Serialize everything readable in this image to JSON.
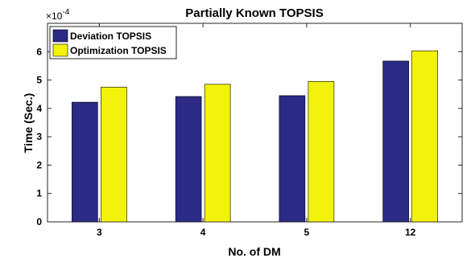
{
  "chart_data": {
    "type": "bar",
    "title": "Partially Known TOPSIS",
    "xlabel": "No. of DM",
    "ylabel": "Time (Sec.)",
    "y_multiplier_label": "×10",
    "y_multiplier_exponent": "-4",
    "categories": [
      "3",
      "4",
      "5",
      "12"
    ],
    "ylim": [
      0,
      7
    ],
    "yticks": [
      "0",
      "1",
      "2",
      "3",
      "4",
      "5",
      "6"
    ],
    "series": [
      {
        "name": "Deviation TOPSIS",
        "color": "#2b2a84",
        "values": [
          4.22,
          4.42,
          4.45,
          5.67
        ]
      },
      {
        "name": "Optimization TOPSIS",
        "color": "#f2f20a",
        "values": [
          4.75,
          4.85,
          4.95,
          6.03
        ]
      }
    ],
    "legend_position": "top-left",
    "grid": false
  }
}
